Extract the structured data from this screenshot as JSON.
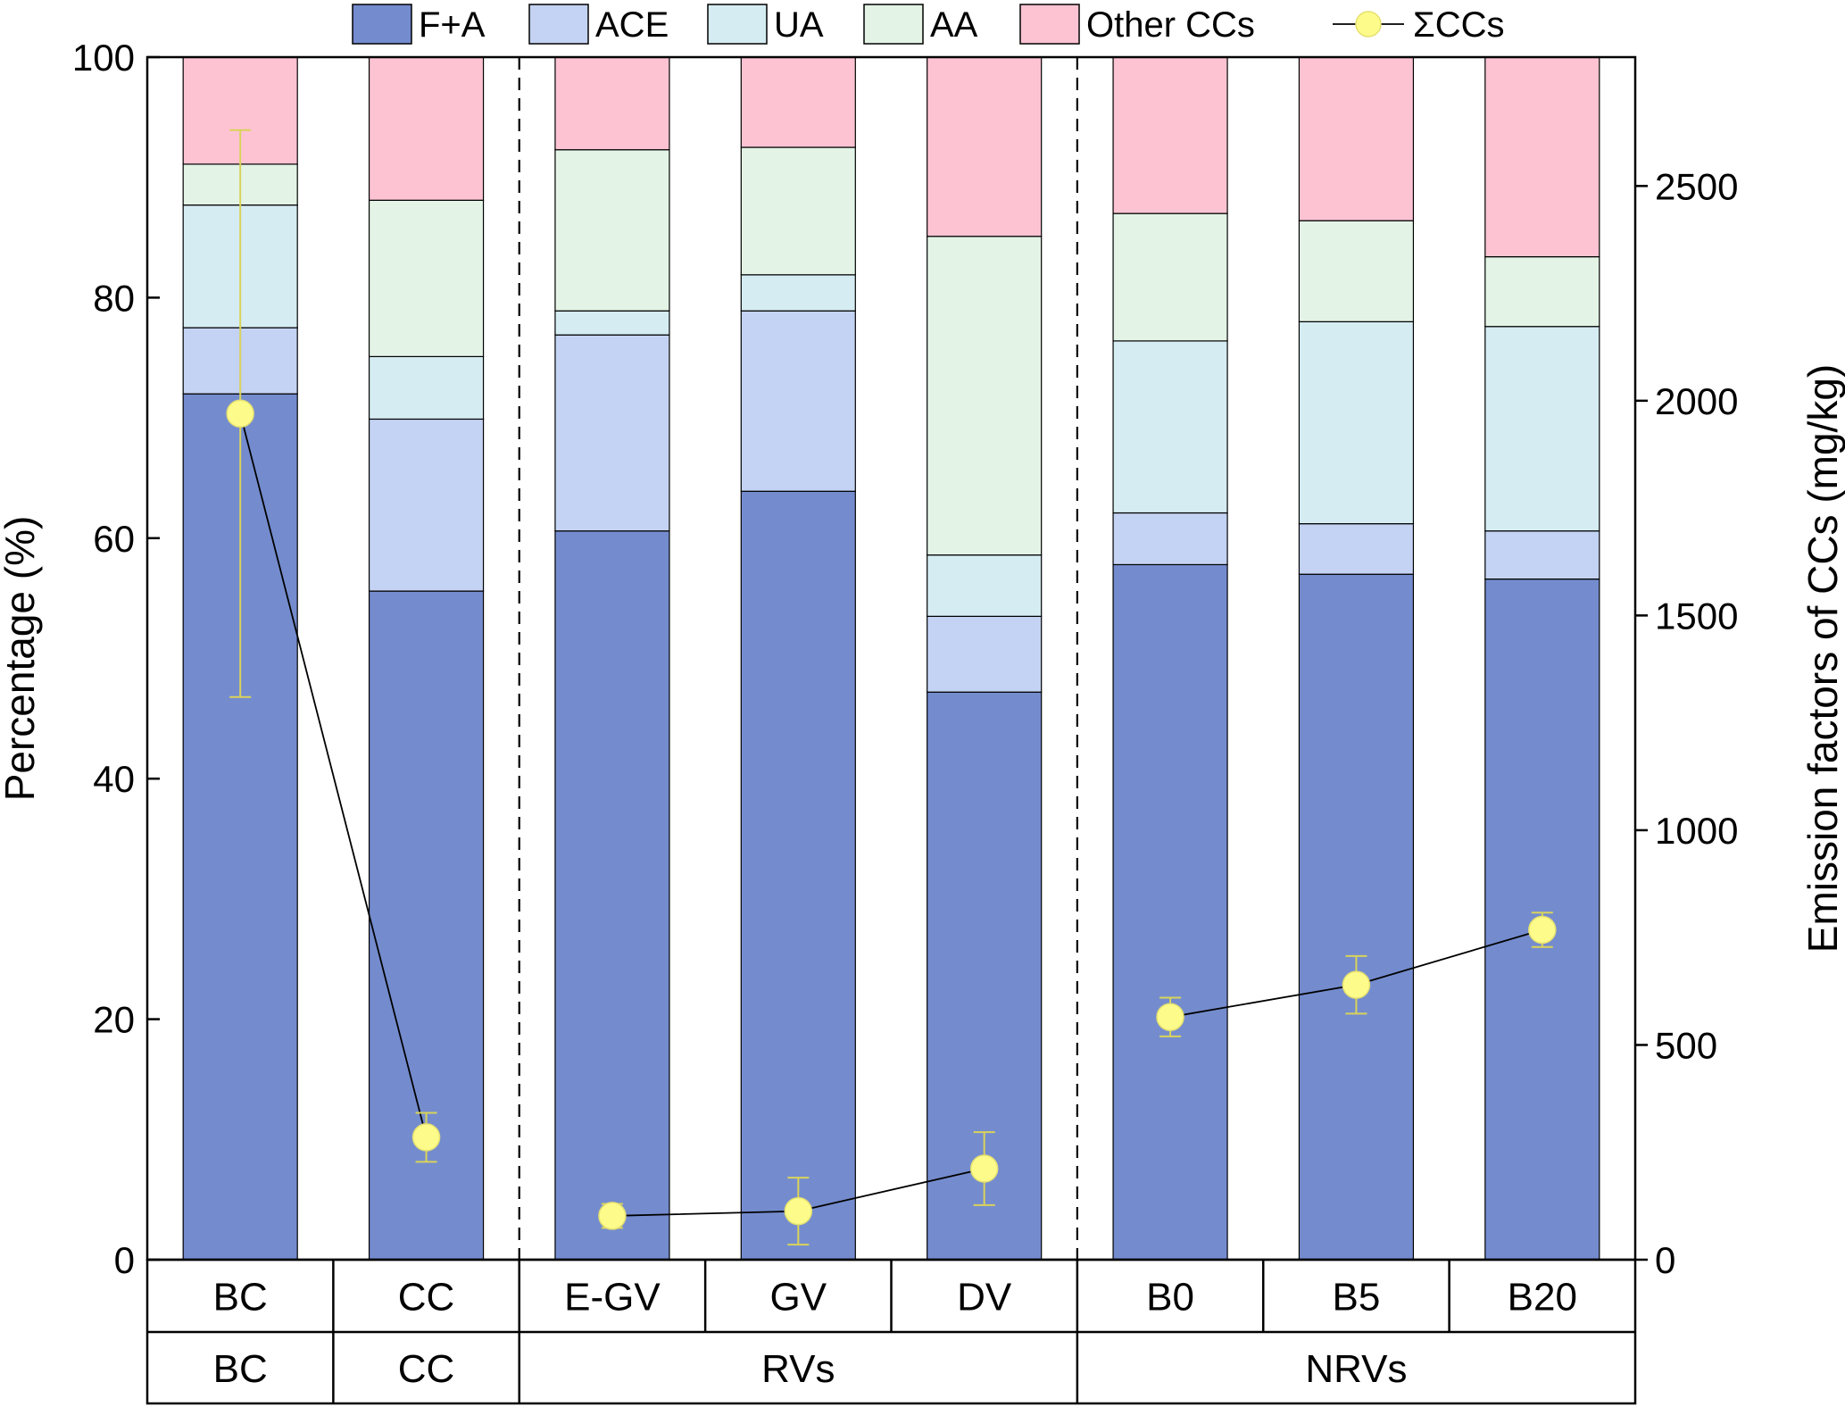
{
  "chart_data": {
    "type": "bar",
    "stacked": true,
    "percent_stacked": true,
    "categories": [
      "BC",
      "CC",
      "E-GV",
      "GV",
      "DV",
      "B0",
      "B5",
      "B20"
    ],
    "groups": [
      {
        "label": "BC",
        "categories": [
          "BC"
        ]
      },
      {
        "label": "CC",
        "categories": [
          "CC"
        ]
      },
      {
        "label": "RVs",
        "categories": [
          "E-GV",
          "GV",
          "DV"
        ]
      },
      {
        "label": "NRVs",
        "categories": [
          "B0",
          "B5",
          "B20"
        ]
      }
    ],
    "series": [
      {
        "name": "F+A",
        "color": "#748cce",
        "values": [
          72.0,
          55.6,
          60.6,
          63.9,
          47.2,
          57.8,
          57.0,
          56.6
        ]
      },
      {
        "name": "ACE",
        "color": "#c4d3f3",
        "values": [
          5.5,
          14.3,
          16.3,
          15.0,
          6.3,
          4.3,
          4.2,
          4.0
        ]
      },
      {
        "name": "UA",
        "color": "#d5ecf2",
        "values": [
          10.2,
          5.2,
          2.0,
          3.0,
          5.1,
          14.3,
          16.8,
          17.0
        ]
      },
      {
        "name": "AA",
        "color": "#e3f4e6",
        "values": [
          3.4,
          13.0,
          13.4,
          10.6,
          26.5,
          10.6,
          8.4,
          5.8
        ]
      },
      {
        "name": "Other CCs",
        "color": "#fdc3d3",
        "values": [
          8.9,
          11.9,
          7.7,
          7.5,
          14.9,
          13.0,
          13.6,
          16.6
        ]
      }
    ],
    "line_series": {
      "name": "ΣCCs",
      "color": "#fdfb8a",
      "line_color": "#000000",
      "values": [
        1970,
        285,
        102,
        113,
        212,
        565,
        640,
        768
      ],
      "error": [
        660,
        57,
        28,
        78,
        85,
        45,
        67,
        40
      ],
      "segments": [
        [
          0,
          1
        ],
        [
          2,
          3,
          4
        ],
        [
          5,
          6,
          7
        ]
      ]
    },
    "ylabel": "Percentage (%)",
    "ylim": [
      0,
      100
    ],
    "yticks": [
      0,
      20,
      40,
      60,
      80,
      100
    ],
    "y2label": "Emission factors of CCs (mg/kg)",
    "y2lim": [
      0,
      2800
    ],
    "y2ticks": [
      0,
      500,
      1000,
      1500,
      2000,
      2500
    ],
    "separators_after": [
      1,
      4
    ],
    "legend_position": "top"
  }
}
